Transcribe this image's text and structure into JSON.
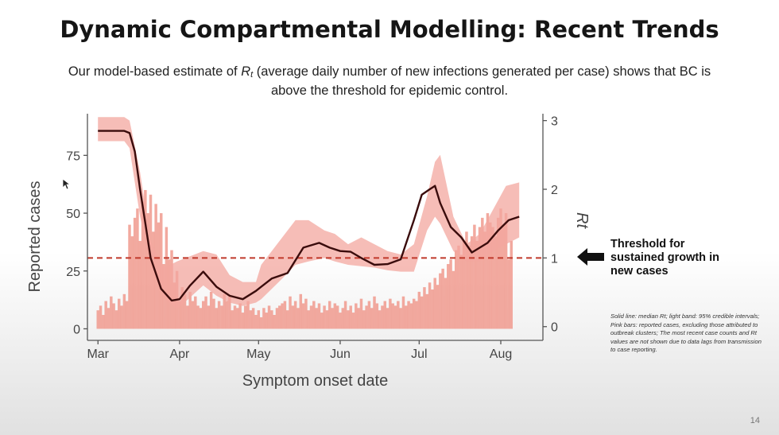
{
  "slide": {
    "title": "Dynamic Compartmental Modelling: Recent Trends",
    "subtitle_pre": "Our model-based estimate of ",
    "subtitle_symbol": "R",
    "subtitle_sub": "t",
    "subtitle_post": " (average daily number of new infections generated per case) shows that BC is above the threshold for epidemic control.",
    "threshold_note": "Threshold for sustained growth in new cases",
    "caption": "Solid line: median Rt; light band: 95% credible intervals; Pink bars: reported cases, excluding those attributed to outbreak clusters; The most recent case counts and Rt values are not shown due to data lags from transmission to case reporting.",
    "page_number": "14"
  },
  "colors": {
    "bars": "#f09a8e",
    "band": "#f3a79f",
    "median_line": "#3a0c0c",
    "threshold": "#c0392b",
    "axis": "#555555"
  },
  "chart_data": {
    "type": "bar",
    "title": "",
    "xlabel": "Symptom onset date",
    "ylabel": "Reported cases",
    "y2label": "Rt",
    "x_ticks": [
      {
        "label": "Mar",
        "day": 0
      },
      {
        "label": "Apr",
        "day": 31
      },
      {
        "label": "May",
        "day": 61
      },
      {
        "label": "Jun",
        "day": 92
      },
      {
        "label": "Jul",
        "day": 122
      },
      {
        "label": "Aug",
        "day": 153
      }
    ],
    "xlim": [
      -4,
      169
    ],
    "ylim": [
      -5,
      93
    ],
    "y_ticks": [
      0,
      25,
      50,
      75
    ],
    "y2lim": [
      -0.2,
      3.1
    ],
    "y2_ticks": [
      0,
      1,
      2,
      3
    ],
    "threshold": 1,
    "bar_series": {
      "name": "Reported cases",
      "start_day": 0,
      "values": [
        8,
        10,
        6,
        12,
        9,
        14,
        11,
        8,
        13,
        10,
        15,
        12,
        45,
        40,
        48,
        52,
        38,
        55,
        60,
        50,
        58,
        42,
        54,
        46,
        50,
        28,
        44,
        30,
        34,
        20,
        25,
        12,
        18,
        15,
        10,
        16,
        12,
        14,
        10,
        9,
        12,
        14,
        10,
        16,
        13,
        9,
        12,
        10,
        15,
        12,
        14,
        8,
        10,
        9,
        11,
        7,
        10,
        12,
        8,
        9,
        6,
        8,
        5,
        9,
        7,
        10,
        8,
        6,
        9,
        10,
        11,
        12,
        8,
        14,
        10,
        12,
        9,
        15,
        11,
        13,
        8,
        10,
        12,
        9,
        11,
        7,
        10,
        8,
        12,
        9,
        11,
        10,
        7,
        9,
        12,
        8,
        10,
        7,
        11,
        9,
        13,
        8,
        10,
        12,
        9,
        14,
        11,
        8,
        10,
        12,
        9,
        13,
        11,
        10,
        12,
        9,
        14,
        10,
        12,
        11,
        13,
        12,
        16,
        14,
        18,
        15,
        20,
        17,
        22,
        19,
        24,
        26,
        22,
        28,
        30,
        25,
        34,
        36,
        32,
        38,
        42,
        36,
        40,
        45,
        38,
        44,
        48,
        42,
        50,
        46,
        44,
        40,
        48,
        52,
        45,
        50,
        30,
        38
      ]
    },
    "band_series": {
      "name": "95% credible interval",
      "days": [
        0,
        10,
        12,
        16,
        20,
        25,
        30,
        40,
        45,
        50,
        55,
        60,
        62,
        70,
        75,
        80,
        86,
        90,
        95,
        100,
        105,
        110,
        115,
        120,
        125,
        128,
        130,
        135,
        140,
        145,
        150,
        155,
        160
      ],
      "lower": [
        2.7,
        2.7,
        2.6,
        1.6,
        0.9,
        0.42,
        0.25,
        0.6,
        0.45,
        0.35,
        0.3,
        0.35,
        0.4,
        0.7,
        0.9,
        0.95,
        1.0,
        0.95,
        0.9,
        0.88,
        0.86,
        0.82,
        0.8,
        0.8,
        1.4,
        1.6,
        1.5,
        1.1,
        0.95,
        0.95,
        1.1,
        1.2,
        1.3
      ],
      "upper": [
        3.05,
        3.05,
        3.0,
        2.25,
        1.25,
        0.85,
        0.95,
        1.1,
        1.05,
        0.75,
        0.65,
        0.65,
        0.9,
        1.3,
        1.55,
        1.55,
        1.4,
        1.35,
        1.2,
        1.3,
        1.2,
        1.1,
        1.05,
        1.2,
        1.9,
        2.4,
        2.5,
        1.6,
        1.2,
        1.35,
        1.7,
        2.05,
        2.1
      ]
    },
    "median_series": {
      "name": "Median Rt",
      "days": [
        0,
        10,
        12,
        14,
        16,
        18,
        20,
        24,
        28,
        31,
        35,
        40,
        45,
        50,
        55,
        60,
        62,
        66,
        72,
        78,
        84,
        88,
        92,
        96,
        100,
        105,
        110,
        115,
        120,
        123,
        126,
        128,
        130,
        134,
        138,
        142,
        148,
        152,
        156,
        160
      ],
      "values": [
        2.85,
        2.85,
        2.82,
        2.55,
        2.0,
        1.5,
        1.0,
        0.55,
        0.38,
        0.4,
        0.6,
        0.8,
        0.58,
        0.45,
        0.4,
        0.52,
        0.58,
        0.7,
        0.78,
        1.15,
        1.22,
        1.15,
        1.1,
        1.09,
        1.0,
        0.9,
        0.91,
        0.98,
        1.55,
        1.92,
        2.0,
        2.05,
        1.8,
        1.45,
        1.3,
        1.08,
        1.22,
        1.4,
        1.55,
        1.6
      ]
    }
  }
}
